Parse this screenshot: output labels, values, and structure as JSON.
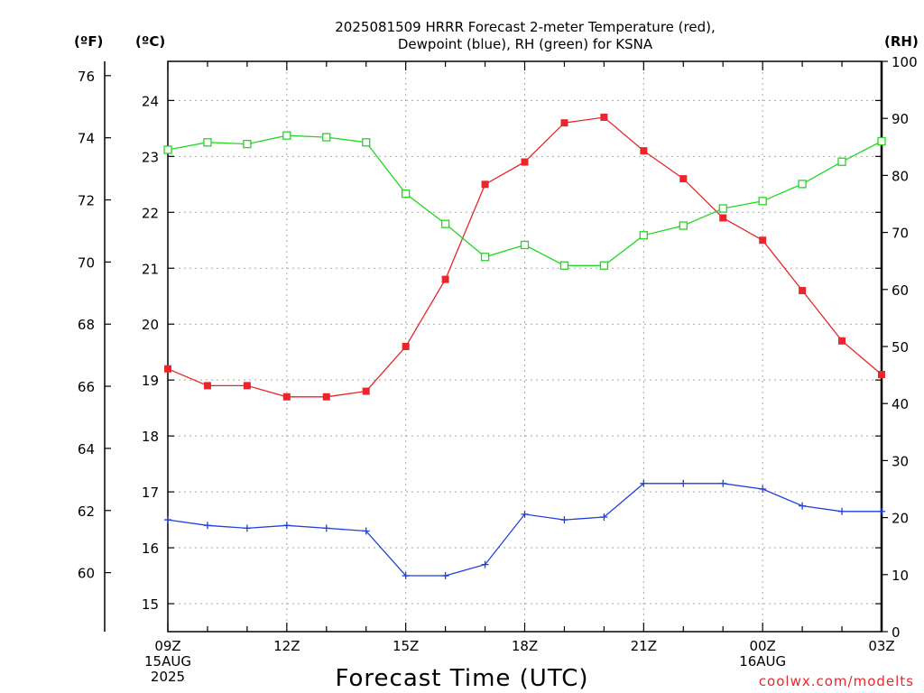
{
  "chart_data": {
    "type": "line",
    "title_lines": [
      "2025081509 HRRR Forecast 2-meter Temperature (red),",
      "Dewpoint (blue), RH (green) for KSNA"
    ],
    "xlabel": "Forecast Time (UTC)",
    "unit_f": "(ºF)",
    "unit_c": "(ºC)",
    "unit_rh": "(RH)",
    "watermark": "coolwx.com/modelts",
    "x_ticks": [
      {
        "h": 0,
        "lines": [
          "09Z",
          "15AUG",
          "2025"
        ]
      },
      {
        "h": 3,
        "lines": [
          "12Z"
        ]
      },
      {
        "h": 6,
        "lines": [
          "15Z"
        ]
      },
      {
        "h": 9,
        "lines": [
          "18Z"
        ]
      },
      {
        "h": 12,
        "lines": [
          "21Z"
        ]
      },
      {
        "h": 15,
        "lines": [
          "00Z",
          "16AUG"
        ]
      },
      {
        "h": 18,
        "lines": [
          "03Z"
        ]
      }
    ],
    "xlim": [
      0,
      18
    ],
    "ylim_c": [
      14.5,
      24.7
    ],
    "ylim_rh": [
      0,
      100
    ],
    "ticks_f": [
      60,
      62,
      64,
      66,
      68,
      70,
      72,
      74,
      76
    ],
    "ticks_c": [
      15,
      16,
      17,
      18,
      19,
      20,
      21,
      22,
      23,
      24
    ],
    "ticks_rh": [
      0,
      10,
      20,
      30,
      40,
      50,
      60,
      70,
      80,
      90,
      100
    ],
    "grid": true,
    "x": [
      0,
      1,
      2,
      3,
      4,
      5,
      6,
      7,
      8,
      9,
      10,
      11,
      12,
      13,
      14,
      15,
      16,
      17,
      18
    ],
    "series": [
      {
        "name": "Temperature",
        "axis": "c",
        "color": "#e8262b",
        "marker": "filled-square",
        "values": [
          19.2,
          18.9,
          18.9,
          18.7,
          18.7,
          18.8,
          19.6,
          20.8,
          22.5,
          22.9,
          23.6,
          23.7,
          23.1,
          22.6,
          21.9,
          21.5,
          20.6,
          19.7,
          19.1
        ]
      },
      {
        "name": "Dewpoint",
        "axis": "c",
        "color": "#1f3fe0",
        "marker": "plus",
        "values": [
          16.5,
          16.4,
          16.35,
          16.4,
          16.35,
          16.3,
          15.5,
          15.5,
          15.7,
          16.6,
          16.5,
          16.55,
          17.15,
          17.15,
          17.15,
          17.05,
          16.75,
          16.65,
          16.65
        ]
      },
      {
        "name": "RH",
        "axis": "rh",
        "color": "#22d822",
        "marker": "open-square",
        "values": [
          84.5,
          85.8,
          85.5,
          87,
          86.7,
          85.8,
          76.8,
          71.5,
          65.7,
          67.8,
          64.2,
          64.2,
          69.5,
          71.2,
          74.2,
          75.5,
          78.5,
          82.4,
          86
        ]
      }
    ]
  }
}
